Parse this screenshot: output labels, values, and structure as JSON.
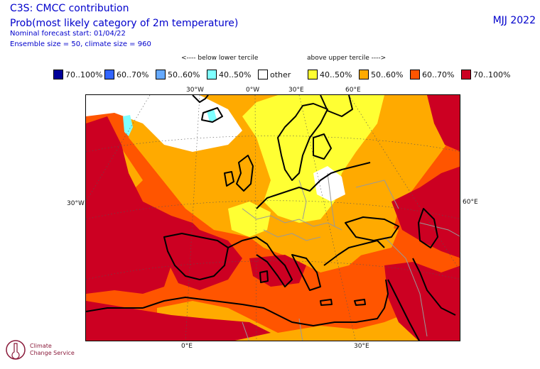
{
  "header": {
    "title": "C3S: CMCC contribution",
    "subtitle": "Prob(most likely category of 2m temperature)",
    "forecast_start": "Nominal forecast start: 01/04/22",
    "ensemble": "Ensemble size = 50, climate size = 960",
    "season": "MJJ 2022"
  },
  "terciles": {
    "below": "<---- below lower tercile",
    "above": "above upper tercile ---->"
  },
  "legend": [
    {
      "label": "70..100%",
      "color": "#000099"
    },
    {
      "label": "60..70%",
      "color": "#3366ff"
    },
    {
      "label": "50..60%",
      "color": "#66aaff"
    },
    {
      "label": "40..50%",
      "color": "#7fffff"
    },
    {
      "label": "other",
      "color": "#ffffff"
    },
    {
      "label": "40..50%",
      "color": "#ffff33"
    },
    {
      "label": "50..60%",
      "color": "#ffaa00"
    },
    {
      "label": "60..70%",
      "color": "#ff5500"
    },
    {
      "label": "70..100%",
      "color": "#cc0022"
    }
  ],
  "ticks": {
    "top": [
      "30°W",
      "0°W",
      "30°E",
      "60°E"
    ],
    "left": "30°W",
    "right": "60°E",
    "bottom": [
      "0°E",
      "30°E"
    ]
  },
  "logo": {
    "line1": "Climate",
    "line2": "Change Service"
  }
}
